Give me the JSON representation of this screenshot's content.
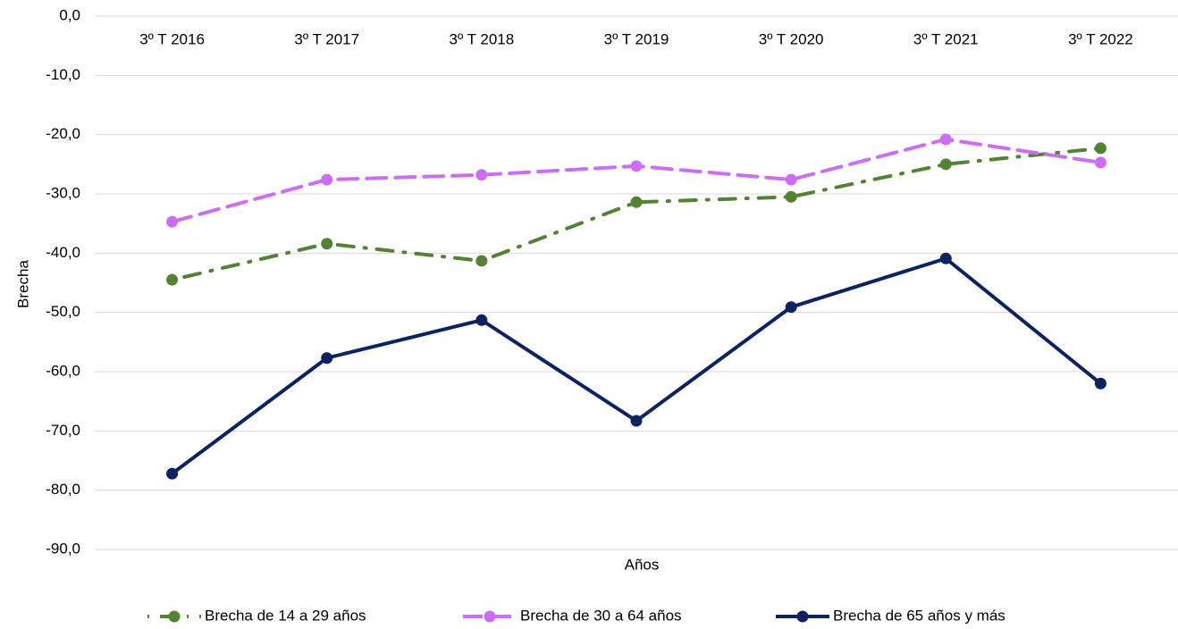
{
  "chart_data": {
    "type": "line",
    "x_label": "Años",
    "y_label": "Brecha",
    "categories": [
      "3º T 2016",
      "3º T 2017",
      "3º T 2018",
      "3º T 2019",
      "3º T 2020",
      "3º T 2021",
      "3º T 2022"
    ],
    "series": [
      {
        "name": "Brecha de 14 a 29 años",
        "color": "#548235",
        "dash": "dash-dot",
        "values": [
          -44.5,
          -38.4,
          -41.3,
          -31.4,
          -30.5,
          -25.0,
          -22.3
        ]
      },
      {
        "name": "Brecha de 30 a 64 años",
        "color": "#cc6ef5",
        "dash": "dash",
        "values": [
          -34.7,
          -27.6,
          -26.8,
          -25.3,
          -27.6,
          -20.8,
          -24.7
        ]
      },
      {
        "name": "Brecha de 65 años y más",
        "color": "#0d2260",
        "dash": "solid",
        "values": [
          -77.2,
          -57.7,
          -51.3,
          -68.3,
          -49.1,
          -40.9,
          -62.0
        ]
      }
    ],
    "ylim": [
      -90,
      0
    ],
    "yticks": [
      {
        "value": 0,
        "label": "0,0"
      },
      {
        "value": -10,
        "label": "-10,0"
      },
      {
        "value": -20,
        "label": "-20,0"
      },
      {
        "value": -30,
        "label": "-30,0"
      },
      {
        "value": -40,
        "label": "-40,0"
      },
      {
        "value": -50,
        "label": "-50,0"
      },
      {
        "value": -60,
        "label": "-60,0"
      },
      {
        "value": -70,
        "label": "-70,0"
      },
      {
        "value": -80,
        "label": "-80,0"
      },
      {
        "value": -90,
        "label": "-90,0"
      }
    ],
    "grid": true,
    "legend": "bottom"
  }
}
